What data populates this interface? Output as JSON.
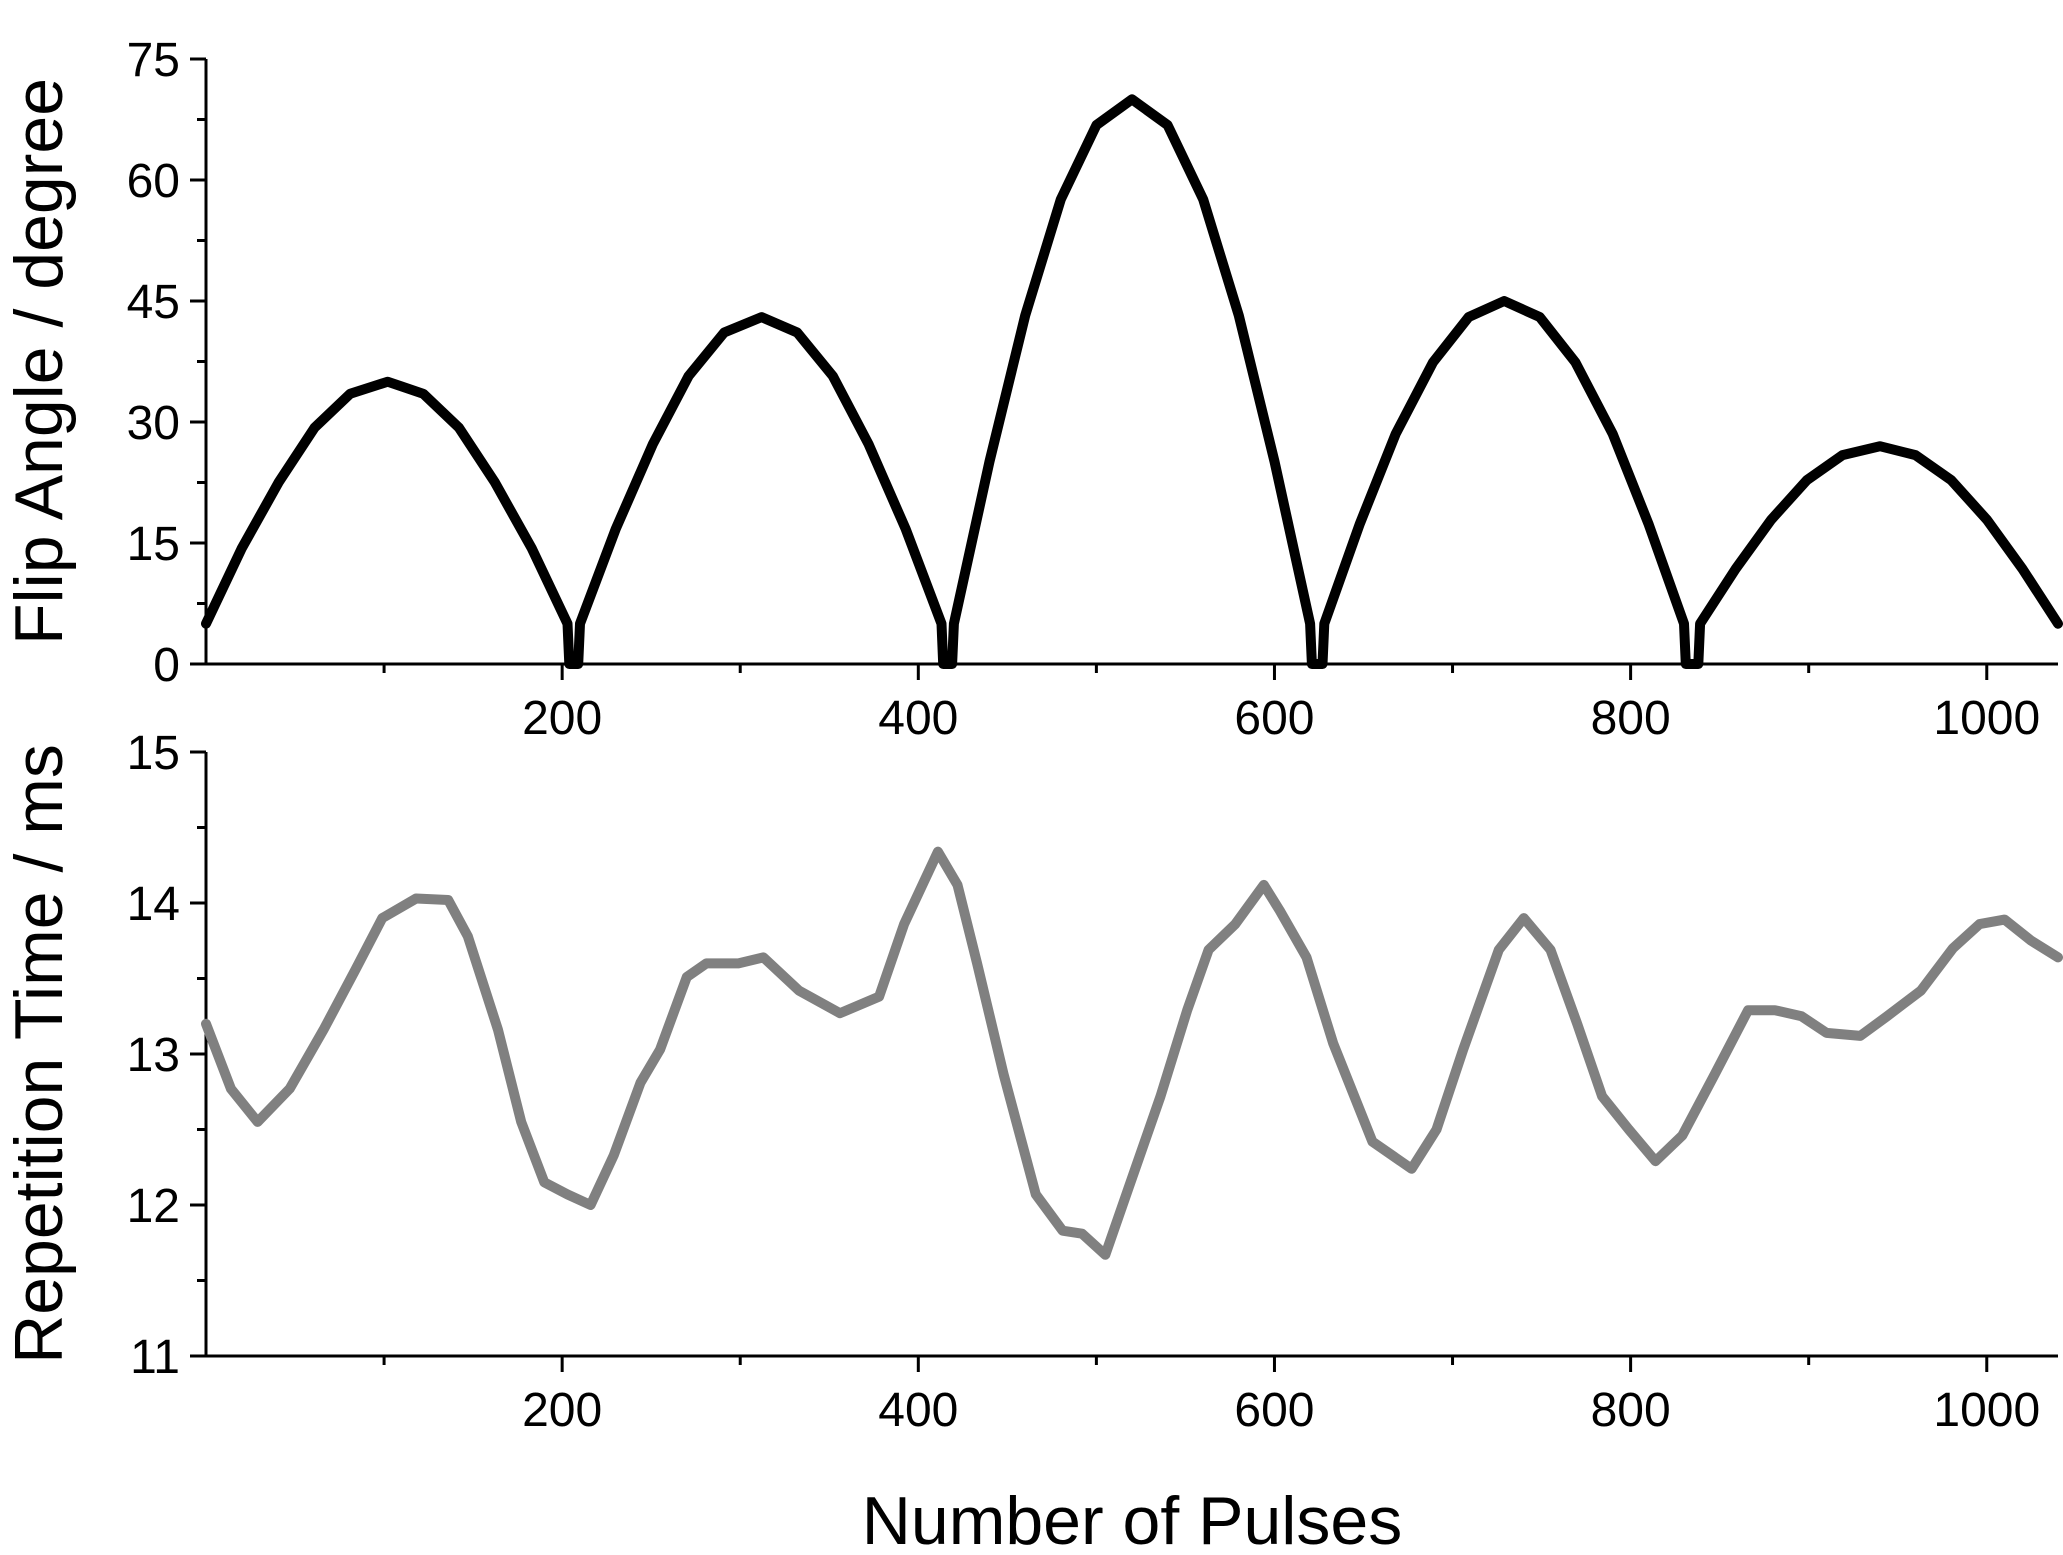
{
  "chart_data": [
    {
      "type": "line",
      "ylabel": "Flip Angle / degree",
      "xlim": [
        0,
        1040
      ],
      "xticks": [
        200,
        400,
        600,
        800,
        1000
      ],
      "xminorticks": [
        100,
        300,
        500,
        700,
        900
      ],
      "ylim": [
        0,
        75
      ],
      "yticks": [
        0,
        15,
        30,
        45,
        60,
        75
      ],
      "yminorticks": [
        7.5,
        22.5,
        37.5,
        52.5,
        67.5
      ],
      "color": "#000000",
      "x": [
        0,
        20,
        41,
        61,
        81,
        102,
        122,
        142,
        162,
        183,
        203,
        204,
        209,
        210,
        230,
        251,
        271,
        291,
        312,
        332,
        352,
        372,
        393,
        413,
        414,
        419,
        420,
        440,
        460,
        480,
        500,
        520,
        540,
        560,
        580,
        600,
        620,
        621,
        627,
        628,
        648,
        668,
        689,
        709,
        729,
        749,
        769,
        790,
        810,
        830,
        831,
        838,
        839,
        859,
        879,
        899,
        919,
        940,
        960,
        980,
        1000,
        1020,
        1040
      ],
      "values": [
        5,
        14.3,
        22.6,
        29.3,
        33.5,
        35,
        33.5,
        29.3,
        22.6,
        14.3,
        5,
        0,
        0,
        5,
        16.7,
        27.3,
        35.7,
        41.1,
        43,
        41.1,
        35.7,
        27.3,
        16.7,
        5,
        0,
        0,
        5,
        25.1,
        43.2,
        57.6,
        66.8,
        70,
        66.8,
        57.6,
        43.2,
        25.1,
        5,
        0,
        0,
        5,
        17.4,
        28.5,
        37.4,
        43,
        45,
        43,
        37.4,
        28.5,
        17.4,
        5,
        0,
        0,
        5,
        11.8,
        17.9,
        22.8,
        25.9,
        27,
        25.9,
        22.8,
        17.9,
        11.8,
        5
      ]
    },
    {
      "type": "line",
      "ylabel": "Repetition Time / ms",
      "xlabel": "Number of Pulses",
      "xlim": [
        0,
        1040
      ],
      "xticks": [
        200,
        400,
        600,
        800,
        1000
      ],
      "xminorticks": [
        100,
        300,
        500,
        700,
        900
      ],
      "ylim": [
        11,
        15
      ],
      "yticks": [
        11,
        12,
        13,
        14,
        15
      ],
      "yminorticks": [
        11.5,
        12.5,
        13.5,
        14.5
      ],
      "color": "#808080",
      "x": [
        0,
        14,
        29,
        47,
        66,
        84,
        99,
        118,
        136,
        147,
        164,
        177,
        190,
        203,
        216,
        229,
        244,
        255,
        270,
        281,
        299,
        313,
        333,
        356,
        378,
        392,
        411,
        422,
        433,
        448,
        466,
        481,
        492,
        505,
        518,
        536,
        551,
        563,
        578,
        594,
        603,
        618,
        633,
        655,
        677,
        691,
        706,
        726,
        740,
        755,
        770,
        784,
        799,
        814,
        829,
        847,
        866,
        881,
        896,
        910,
        929,
        944,
        963,
        981,
        996,
        1010,
        1025,
        1040
      ],
      "values": [
        13.2,
        12.77,
        12.55,
        12.77,
        13.16,
        13.56,
        13.9,
        14.03,
        14.02,
        13.78,
        13.16,
        12.55,
        12.15,
        12.07,
        12.0,
        12.33,
        12.81,
        13.03,
        13.51,
        13.6,
        13.6,
        13.64,
        13.42,
        13.27,
        13.38,
        13.86,
        14.34,
        14.12,
        13.6,
        12.86,
        12.07,
        11.83,
        11.81,
        11.67,
        12.11,
        12.72,
        13.29,
        13.69,
        13.86,
        14.12,
        13.95,
        13.64,
        13.07,
        12.42,
        12.24,
        12.5,
        13.03,
        13.69,
        13.9,
        13.69,
        13.2,
        12.72,
        12.5,
        12.29,
        12.46,
        12.86,
        13.29,
        13.29,
        13.25,
        13.14,
        13.12,
        13.25,
        13.42,
        13.7,
        13.86,
        13.89,
        13.75,
        13.64
      ]
    }
  ]
}
